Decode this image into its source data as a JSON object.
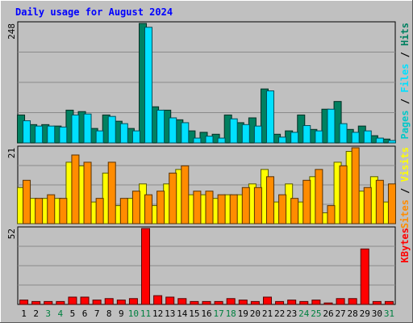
{
  "title": "Daily usage for August 2024",
  "colors": {
    "background": "#c0c0c0",
    "plot_bg": "#c0c0c0",
    "gridline": "#8a8a8a",
    "frame_dark": "#5a5a5a",
    "frame_light": "#ffffff",
    "title_text": "#0000ff",
    "hits": "#008060",
    "files": "#00e0ff",
    "pages": "#00c8c8",
    "visits": "#ffff00",
    "sites": "#ff8c00",
    "kbytes": "#ff0000",
    "weekday_label": "#000000",
    "weekend_label": "#008040"
  },
  "chart_data": {
    "type": "bar",
    "title": "Daily usage for August 2024",
    "days": [
      "1",
      "2",
      "3",
      "4",
      "5",
      "6",
      "7",
      "8",
      "9",
      "10",
      "11",
      "12",
      "13",
      "14",
      "15",
      "16",
      "17",
      "18",
      "19",
      "20",
      "21",
      "22",
      "23",
      "24",
      "25",
      "26",
      "27",
      "28",
      "29",
      "30",
      "31"
    ],
    "weekend_days": [
      "3",
      "4",
      "10",
      "11",
      "17",
      "18",
      "24",
      "25",
      "31"
    ],
    "panels": [
      {
        "id": "top",
        "max_label": "248",
        "ylim": [
          0,
          248
        ],
        "right_label": [
          {
            "text": "Pages",
            "color_key": "pages"
          },
          {
            "text": " / ",
            "color_key": "weekday_label"
          },
          {
            "text": "Files",
            "color_key": "files"
          },
          {
            "text": " / ",
            "color_key": "weekday_label"
          },
          {
            "text": "Hits",
            "color_key": "hits"
          }
        ],
        "series": [
          {
            "name": "Hits",
            "color_key": "hits",
            "values": [
              58,
              38,
              38,
              35,
              68,
              65,
              30,
              58,
              45,
              30,
              248,
              75,
              68,
              48,
              25,
              22,
              18,
              58,
              42,
              52,
              112,
              18,
              25,
              58,
              28,
              70,
              86,
              28,
              35,
              15,
              8
            ]
          },
          {
            "name": "Files",
            "color_key": "files",
            "values": [
              46,
              35,
              35,
              33,
              58,
              60,
              25,
              55,
              40,
              25,
              240,
              68,
              52,
              42,
              10,
              14,
              10,
              50,
              38,
              35,
              108,
              12,
              22,
              36,
              25,
              70,
              40,
              22,
              25,
              10,
              5
            ]
          },
          {
            "name": "Pages",
            "color_key": "pages",
            "values": [
              0,
              0,
              0,
              0,
              0,
              0,
              0,
              0,
              0,
              0,
              0,
              0,
              0,
              0,
              0,
              0,
              0,
              0,
              0,
              0,
              0,
              0,
              0,
              0,
              0,
              0,
              0,
              0,
              0,
              0,
              0
            ]
          }
        ]
      },
      {
        "id": "middle",
        "max_label": "21",
        "ylim": [
          0,
          21
        ],
        "right_label": [
          {
            "text": "Sites",
            "color_key": "sites"
          },
          {
            "text": " / ",
            "color_key": "weekday_label"
          },
          {
            "text": "Visits",
            "color_key": "visits"
          }
        ],
        "series": [
          {
            "name": "Visits",
            "color_key": "visits",
            "values": [
              10,
              7,
              7,
              7,
              17,
              16,
              6,
              14,
              5,
              7,
              11,
              5,
              11,
              15,
              8,
              8,
              7,
              8,
              8,
              11,
              15,
              6,
              11,
              6,
              13,
              3,
              17,
              20,
              9,
              13,
              6
            ]
          },
          {
            "name": "Sites",
            "color_key": "sites",
            "values": [
              12,
              7,
              8,
              7,
              19,
              17,
              7,
              17,
              7,
              9,
              8,
              9,
              14,
              16,
              9,
              9,
              8,
              8,
              10,
              10,
              13,
              8,
              7,
              12,
              15,
              5,
              16,
              21,
              10,
              12,
              11
            ]
          }
        ]
      },
      {
        "id": "bottom",
        "max_label": "52",
        "ylim": [
          0,
          52
        ],
        "right_label": [
          {
            "text": "KBytes",
            "color_key": "kbytes"
          }
        ],
        "series": [
          {
            "name": "KBytes",
            "color_key": "kbytes",
            "values": [
              3,
              2,
              2,
              2,
              5,
              5,
              3,
              4,
              3,
              4,
              52,
              6,
              5,
              4,
              2,
              2,
              2,
              4,
              3,
              2,
              5,
              2,
              3,
              2,
              3,
              1,
              4,
              4,
              38,
              2,
              2
            ]
          }
        ]
      }
    ]
  }
}
